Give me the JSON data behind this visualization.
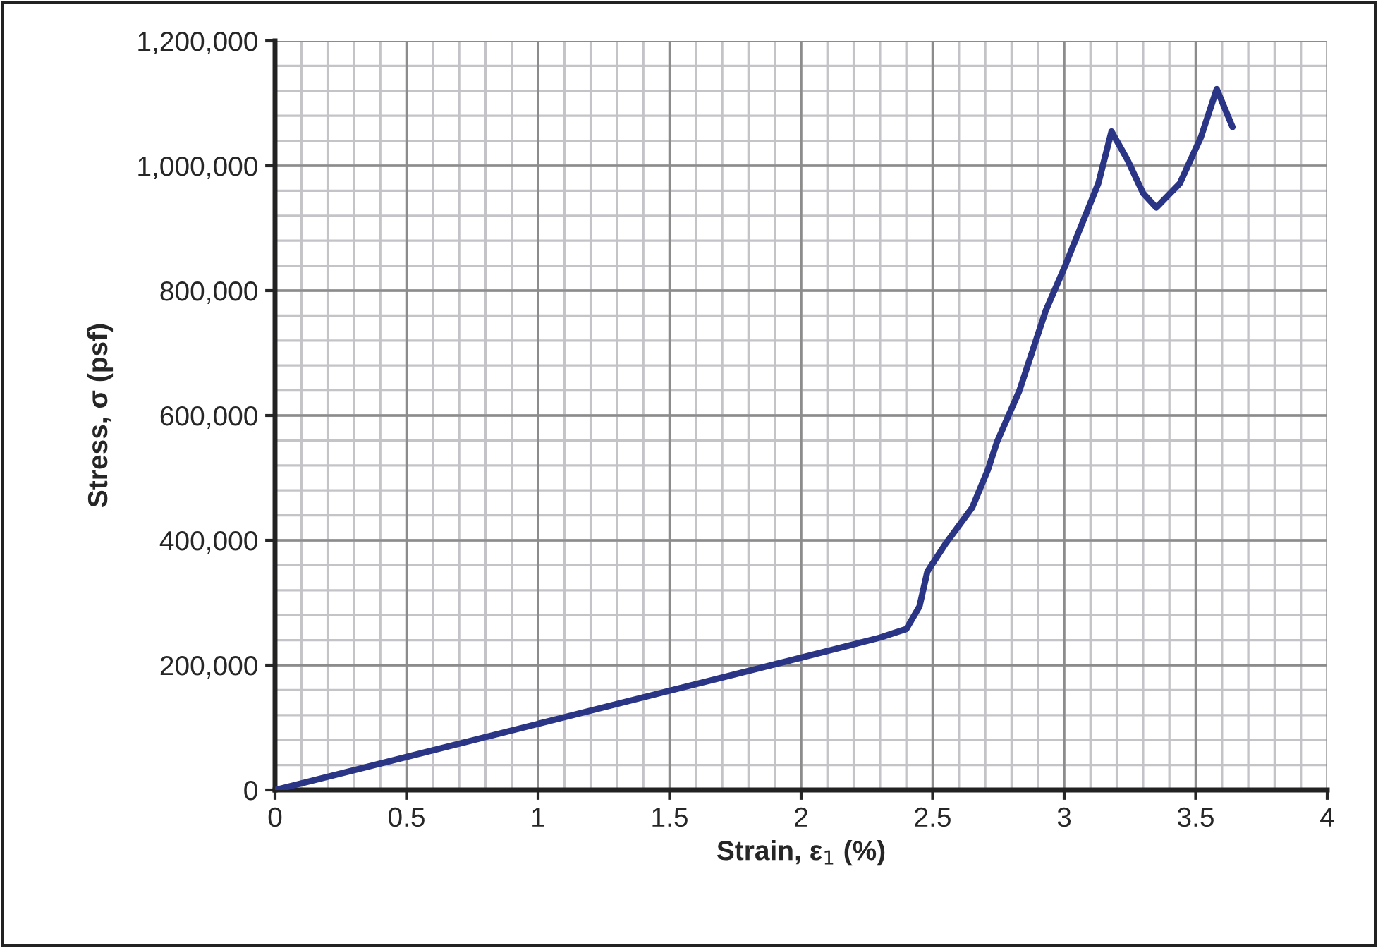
{
  "chart_data": {
    "type": "line",
    "xlabel": "Strain, ε$_{1}$ (%)",
    "ylabel": "Stress, σ (psf)",
    "x": [
      0,
      0.5,
      1.0,
      1.5,
      2.0,
      2.3,
      2.4,
      2.45,
      2.48,
      2.55,
      2.65,
      2.71,
      2.745,
      2.83,
      2.93,
      3.0,
      3.13,
      3.18,
      3.24,
      3.3,
      3.35,
      3.44,
      3.52,
      3.58,
      3.64
    ],
    "series": [
      {
        "color": "#2b3586",
        "values": [
          0,
          53000,
          106000,
          159000,
          212000,
          244000,
          258000,
          294000,
          350000,
          395000,
          452000,
          513000,
          558000,
          640000,
          768000,
          836000,
          972000,
          1055000,
          1010000,
          956000,
          933000,
          972000,
          1046000,
          1123000,
          1062000
        ]
      }
    ],
    "xlim": [
      0,
      4
    ],
    "xticks": [
      0,
      0.5,
      1,
      1.5,
      2,
      2.5,
      3,
      3.5,
      4
    ],
    "ylim": [
      0,
      1200000
    ],
    "yticks": [
      {
        "value": 0,
        "label": "0"
      },
      {
        "value": 200000,
        "label": "200,000"
      },
      {
        "value": 400000,
        "label": "400,000"
      },
      {
        "value": 600000,
        "label": "600,000"
      },
      {
        "value": 800000,
        "label": "800,000"
      },
      {
        "value": 1000000,
        "label": "1,000,000"
      },
      {
        "value": 1200000,
        "label": "1,200,000"
      }
    ],
    "grid": true,
    "marker": "none",
    "line_style": "solid",
    "legend": false
  }
}
